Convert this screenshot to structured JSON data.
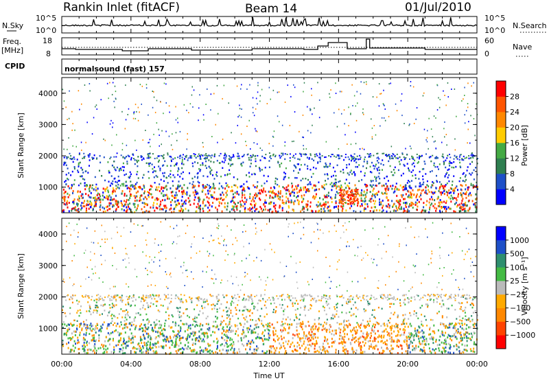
{
  "header": {
    "station": "Rankin Inlet (fitACF)",
    "beam": "Beam 14",
    "date": "01/Jul/2010"
  },
  "summary": {
    "nsky_label": "N.Sky",
    "nsky_ticks": [
      "10^5",
      "10^0"
    ],
    "nsearch_label": "N.Search",
    "nsearch_ticks": [
      "10^5",
      "10^0"
    ],
    "freq_label": "Freq.",
    "freq_unit": "[MHz]",
    "freq_ticks": [
      "18",
      "8"
    ],
    "nave_label": "Nave",
    "nave_ticks": [
      "60",
      "0"
    ],
    "cpid_label": "CPID",
    "cpid_value": "normalsound (fast) 157"
  },
  "chart_data": [
    {
      "type": "heatmap",
      "name": "power-panel",
      "ylabel": "Slant Range [km]",
      "ylim": [
        180,
        4500
      ],
      "yticks": [
        "4000",
        "3000",
        "2000",
        "1000"
      ],
      "colorbar": {
        "label": "Power [dB]",
        "ticks": [
          "28",
          "24",
          "20",
          "16",
          "12",
          "8",
          "4"
        ],
        "colors": [
          "#0000ff",
          "#1e50c8",
          "#2f7f50",
          "#44aa44",
          "#ffcc00",
          "#ff8800",
          "#ff5500",
          "#ff0000"
        ]
      }
    },
    {
      "type": "heatmap",
      "name": "velocity-panel",
      "ylabel": "Slant Range [km]",
      "xlabel": "Time UT",
      "ylim": [
        180,
        4500
      ],
      "yticks": [
        "4000",
        "3000",
        "2000",
        "1000"
      ],
      "xticks": [
        "00:00",
        "04:00",
        "08:00",
        "12:00",
        "16:00",
        "20:00",
        "00:00"
      ],
      "colorbar": {
        "label": "Velocity [m s⁻¹]",
        "ticks": [
          "1000",
          "500",
          "100",
          "25",
          "−25",
          "−100",
          "−500",
          "−1000"
        ],
        "colors": [
          "#ff0000",
          "#ff4400",
          "#ff8800",
          "#ffaa00",
          "#bbbbbb",
          "#44bb44",
          "#2f8f6f",
          "#1e50c8",
          "#0000ff"
        ]
      }
    }
  ]
}
